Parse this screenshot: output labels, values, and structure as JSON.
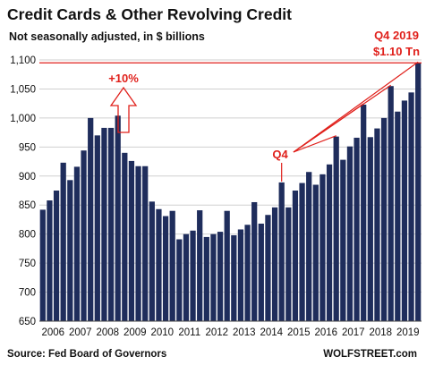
{
  "chart_data": {
    "type": "bar",
    "title": "Credit Cards & Other Revolving Credit",
    "subtitle": "Not seasonally adjusted, in $ billions",
    "source": "Source: Fed Board of Governors",
    "watermark": "WOLFSTREET.com",
    "ylim": [
      650,
      1100
    ],
    "yticks": [
      "650",
      "700",
      "750",
      "800",
      "850",
      "900",
      "950",
      "1,000",
      "1,050",
      "1,100"
    ],
    "x_tick_labels": [
      "2006",
      "2007",
      "2008",
      "2009",
      "2010",
      "2011",
      "2012",
      "2013",
      "2014",
      "2015",
      "2016",
      "2017",
      "2018",
      "2019"
    ],
    "bar_color": "#1f2d5c",
    "annotation_color": "#e0201b",
    "start_year": 2006,
    "values": [
      842,
      858,
      875,
      923,
      893,
      916,
      944,
      1000,
      970,
      983,
      983,
      1004,
      940,
      926,
      917,
      917,
      856,
      843,
      831,
      840,
      791,
      800,
      806,
      841,
      795,
      800,
      804,
      840,
      798,
      808,
      816,
      855,
      818,
      833,
      846,
      889,
      846,
      875,
      888,
      907,
      885,
      903,
      920,
      968,
      928,
      951,
      966,
      1023,
      967,
      982,
      1000,
      1055,
      1011,
      1030,
      1044,
      1095
    ],
    "annotations": {
      "ten_percent": "+10%",
      "q4": "Q4",
      "q4_2019_line1": "Q4 2019",
      "q4_2019_line2": "$1.10 Tn"
    }
  }
}
